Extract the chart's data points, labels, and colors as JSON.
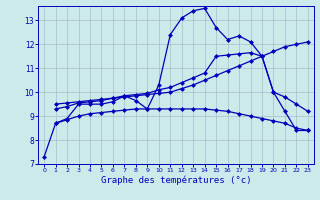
{
  "title": "Graphe des températures (°c)",
  "bg_color": "#cceaea",
  "grid_color": "#aabbcc",
  "line_color": "#0000bb",
  "ylim": [
    7,
    13.6
  ],
  "xlim": [
    -0.5,
    23.5
  ],
  "yticks": [
    7,
    8,
    9,
    10,
    11,
    12,
    13
  ],
  "xticks": [
    0,
    1,
    2,
    3,
    4,
    5,
    6,
    7,
    8,
    9,
    10,
    11,
    12,
    13,
    14,
    15,
    16,
    17,
    18,
    19,
    20,
    21,
    22,
    23
  ],
  "line_main": {
    "x": [
      0,
      1,
      2,
      3,
      4,
      5,
      6,
      7,
      8,
      9,
      10,
      11,
      12,
      13,
      14,
      15,
      16,
      17,
      18,
      19,
      20,
      21,
      22,
      23
    ],
    "y": [
      7.3,
      8.7,
      8.9,
      9.5,
      9.5,
      9.5,
      9.6,
      9.85,
      9.65,
      9.3,
      10.3,
      12.4,
      13.1,
      13.4,
      13.5,
      12.7,
      12.2,
      12.35,
      12.1,
      11.5,
      10.0,
      9.2,
      8.4,
      8.4
    ]
  },
  "line_upper": {
    "x": [
      1,
      2,
      3,
      4,
      5,
      6,
      7,
      8,
      9,
      10,
      11,
      12,
      13,
      14,
      15,
      16,
      17,
      18,
      19,
      20,
      21,
      22,
      23
    ],
    "y": [
      9.3,
      9.4,
      9.55,
      9.6,
      9.65,
      9.75,
      9.85,
      9.9,
      9.95,
      10.1,
      10.2,
      10.4,
      10.6,
      10.8,
      11.5,
      11.55,
      11.6,
      11.65,
      11.5,
      10.0,
      9.8,
      9.5,
      9.2
    ]
  },
  "line_mid": {
    "x": [
      1,
      2,
      3,
      4,
      5,
      6,
      7,
      8,
      9,
      10,
      11,
      12,
      13,
      14,
      15,
      16,
      17,
      18,
      19,
      20,
      21,
      22,
      23
    ],
    "y": [
      9.5,
      9.55,
      9.6,
      9.65,
      9.7,
      9.75,
      9.8,
      9.85,
      9.9,
      9.95,
      10.0,
      10.15,
      10.3,
      10.5,
      10.7,
      10.9,
      11.1,
      11.3,
      11.5,
      11.7,
      11.9,
      12.0,
      12.1
    ]
  },
  "line_bottom": {
    "x": [
      1,
      2,
      3,
      4,
      5,
      6,
      7,
      8,
      9,
      10,
      11,
      12,
      13,
      14,
      15,
      16,
      17,
      18,
      19,
      20,
      21,
      22,
      23
    ],
    "y": [
      8.7,
      8.85,
      9.0,
      9.1,
      9.15,
      9.2,
      9.25,
      9.3,
      9.3,
      9.3,
      9.3,
      9.3,
      9.3,
      9.3,
      9.25,
      9.2,
      9.1,
      9.0,
      8.9,
      8.8,
      8.7,
      8.5,
      8.4
    ]
  }
}
